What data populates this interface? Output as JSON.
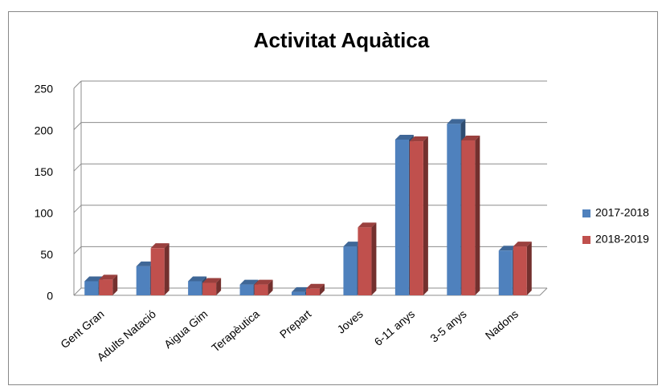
{
  "chart_data": {
    "type": "bar",
    "title": "Activitat Aquàtica",
    "categories": [
      "Gent Gran",
      "Adults Natació",
      "Aigua Gim",
      "Terapèutica",
      "Prepart",
      "Joves",
      "6-11 anys",
      "3-5 anys",
      "Nadons"
    ],
    "series": [
      {
        "name": "2017-2018",
        "color": "#4f81bd",
        "values": [
          17,
          35,
          17,
          13,
          4,
          59,
          188,
          207,
          54
        ]
      },
      {
        "name": "2018-2019",
        "color": "#c0504d",
        "values": [
          19,
          57,
          15,
          13,
          8,
          82,
          186,
          187,
          59
        ]
      }
    ],
    "ylim": [
      0,
      250
    ],
    "yticks": [
      0,
      50,
      100,
      150,
      200,
      250
    ],
    "grid": true,
    "legend": "right"
  }
}
